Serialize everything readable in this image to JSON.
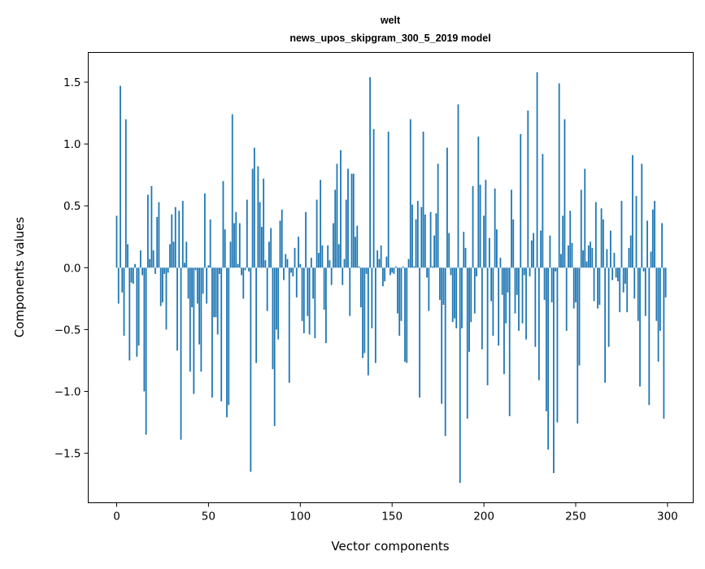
{
  "chart_data": {
    "type": "bar",
    "title_lines": [
      "welt",
      "news_upos_skipgram_300_5_2019 model"
    ],
    "xlabel": "Vector components",
    "ylabel": "Components values",
    "xlim": [
      -15.5,
      314
    ],
    "ylim": [
      -1.9,
      1.74
    ],
    "xticks": [
      0,
      50,
      100,
      150,
      200,
      250,
      300
    ],
    "xtick_labels": [
      "0",
      "50",
      "100",
      "150",
      "200",
      "250",
      "300"
    ],
    "yticks": [
      -1.5,
      -1.0,
      -0.5,
      0.0,
      0.5,
      1.0,
      1.5
    ],
    "ytick_labels": [
      "−1.5",
      "−1.0",
      "−0.5",
      "0.0",
      "0.5",
      "1.0",
      "1.5"
    ],
    "grid": false,
    "bar_color": "#1f77b4",
    "x_start": 0,
    "values": [
      0.42,
      -0.29,
      1.47,
      -0.2,
      -0.55,
      1.2,
      0.19,
      -0.75,
      -0.12,
      -0.13,
      0.03,
      -0.72,
      -0.63,
      0.14,
      -0.06,
      -1.0,
      -1.35,
      0.59,
      0.07,
      0.66,
      0.14,
      -0.05,
      0.41,
      0.53,
      -0.31,
      -0.28,
      -0.05,
      -0.5,
      -0.04,
      0.19,
      0.43,
      0.21,
      0.49,
      -0.67,
      0.46,
      -1.39,
      0.54,
      0.04,
      0.21,
      -0.25,
      -0.84,
      -0.32,
      -1.02,
      -0.02,
      -0.29,
      -0.62,
      -0.84,
      -0.21,
      0.6,
      -0.29,
      0.02,
      0.39,
      -1.05,
      -0.4,
      -0.4,
      -0.54,
      -0.05,
      -1.08,
      0.7,
      0.31,
      -1.21,
      -1.11,
      0.21,
      1.24,
      0.36,
      0.45,
      0.03,
      0.36,
      -0.06,
      -0.25,
      -0.02,
      0.55,
      -0.03,
      -1.65,
      0.8,
      0.97,
      -0.77,
      0.82,
      0.53,
      0.33,
      0.72,
      0.06,
      -0.35,
      0.21,
      0.32,
      -0.82,
      -1.28,
      -0.5,
      -0.58,
      0.38,
      0.47,
      -0.1,
      0.11,
      0.07,
      -0.93,
      -0.04,
      -0.07,
      0.16,
      -0.24,
      0.25,
      0.03,
      -0.43,
      -0.53,
      0.45,
      -0.39,
      -0.54,
      0.08,
      -0.25,
      -0.57,
      0.55,
      0.12,
      0.71,
      0.18,
      -0.34,
      -0.61,
      0.18,
      0.06,
      -0.14,
      0.36,
      0.63,
      0.84,
      0.19,
      0.95,
      -0.14,
      0.07,
      0.55,
      0.8,
      -0.39,
      0.76,
      0.76,
      0.25,
      0.34,
      0.01,
      -0.32,
      -0.73,
      -0.69,
      -0.05,
      -0.87,
      1.54,
      -0.49,
      1.12,
      -0.77,
      0.14,
      0.07,
      0.18,
      -0.15,
      -0.11,
      0.09,
      1.1,
      -0.06,
      -0.04,
      -0.05,
      0.01,
      -0.37,
      -0.55,
      -0.43,
      0.01,
      -0.76,
      -0.77,
      0.07,
      1.2,
      0.51,
      0.01,
      0.39,
      0.54,
      -1.05,
      0.49,
      1.1,
      0.43,
      -0.08,
      -0.35,
      0.45,
      0.01,
      0.26,
      0.44,
      0.84,
      -0.26,
      -1.1,
      -0.3,
      -1.36,
      0.97,
      0.28,
      -0.06,
      -0.44,
      -0.41,
      -0.49,
      1.32,
      -1.74,
      -0.49,
      0.29,
      0.16,
      -1.22,
      -0.68,
      -0.44,
      0.66,
      -0.37,
      -0.07,
      1.06,
      0.67,
      -0.66,
      0.42,
      0.71,
      -0.95,
      0.24,
      -0.27,
      -0.55,
      0.64,
      0.31,
      -0.63,
      0.08,
      -0.22,
      -0.86,
      -0.45,
      -0.2,
      -1.2,
      0.63,
      0.39,
      -0.37,
      -0.22,
      -0.51,
      1.08,
      -0.45,
      -0.06,
      -0.58,
      1.27,
      -0.07,
      0.22,
      0.28,
      -0.64,
      1.58,
      -0.91,
      0.3,
      0.92,
      -0.26,
      -1.16,
      -1.47,
      0.26,
      -0.28,
      -1.66,
      -0.03,
      -1.25,
      1.49,
      0.11,
      0.42,
      1.2,
      -0.51,
      0.18,
      0.46,
      0.2,
      -0.33,
      -0.28,
      -1.26,
      -0.79,
      0.63,
      0.14,
      0.8,
      0.05,
      0.18,
      0.21,
      0.16,
      -0.27,
      0.53,
      -0.33,
      -0.3,
      0.48,
      0.39,
      -0.93,
      0.15,
      -0.64,
      0.3,
      -0.1,
      0.12,
      -0.08,
      -0.11,
      -0.36,
      0.54,
      -0.2,
      -0.13,
      -0.36,
      0.16,
      0.26,
      0.91,
      -0.25,
      0.58,
      -0.43,
      -0.96,
      0.84,
      -0.03,
      -0.39,
      0.38,
      -1.11,
      0.13,
      0.47,
      0.54,
      -0.43,
      -0.76,
      -0.51,
      0.36,
      -1.22,
      -0.24
    ]
  }
}
